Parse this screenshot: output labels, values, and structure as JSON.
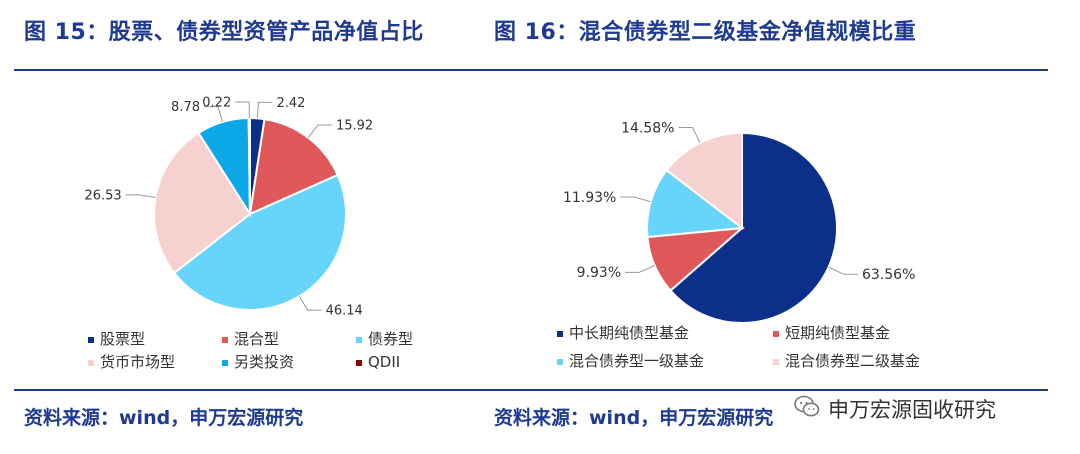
{
  "left": {
    "title": "图 15：股票、债券型资管产品净值占比",
    "source": "资料来源：wind，申万宏源研究"
  },
  "right": {
    "title": "图 16：混合债券型二级基金净值规模比重",
    "source": "资料来源：wind，申万宏源研究"
  },
  "watermark": {
    "text": "申万宏源固收研究",
    "icon": "wechat-icon"
  },
  "chart_data": [
    {
      "type": "pie",
      "title": "图 15：股票、债券型资管产品净值占比",
      "categories": [
        "股票型",
        "混合型",
        "债券型",
        "货币市场型",
        "另类投资",
        "QDII"
      ],
      "values": [
        2.42,
        15.92,
        46.14,
        26.53,
        8.78,
        0.22
      ],
      "labels": [
        "2.42",
        "15.92",
        "46.14",
        "26.53",
        "8.78",
        "0.22"
      ],
      "colors": [
        "#0c2f8a",
        "#e0595a",
        "#66d4fb",
        "#f7d0d0",
        "#0ba8e8",
        "#8b0000"
      ],
      "legend_position": "bottom"
    },
    {
      "type": "pie",
      "title": "图 16：混合债券型二级基金净值规模比重",
      "categories": [
        "中长期纯债型基金",
        "短期纯债型基金",
        "混合债券型一级基金",
        "混合债券型二级基金"
      ],
      "values": [
        63.56,
        9.93,
        11.93,
        14.58
      ],
      "labels": [
        "63.56%",
        "9.93%",
        "11.93%",
        "14.58%"
      ],
      "colors": [
        "#0c2f8a",
        "#e0595a",
        "#66d4fb",
        "#f7d0d0"
      ],
      "legend_position": "bottom"
    }
  ]
}
